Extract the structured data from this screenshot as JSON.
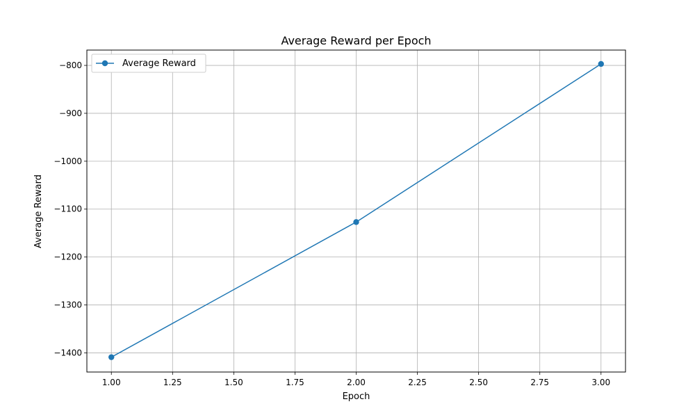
{
  "chart_data": {
    "type": "line",
    "title": "Average Reward per Epoch",
    "xlabel": "Epoch",
    "ylabel": "Average Reward",
    "x": [
      1,
      2,
      3
    ],
    "series": [
      {
        "name": "Average Reward",
        "values": [
          -1409,
          -1127,
          -797
        ],
        "color": "#1f77b4",
        "marker": "circle"
      }
    ],
    "xlim": [
      0.9,
      3.1
    ],
    "ylim": [
      -1440,
      -768
    ],
    "xticks": [
      1.0,
      1.25,
      1.5,
      1.75,
      2.0,
      2.25,
      2.5,
      2.75,
      3.0
    ],
    "xtick_labels": [
      "1.00",
      "1.25",
      "1.50",
      "1.75",
      "2.00",
      "2.25",
      "2.50",
      "2.75",
      "3.00"
    ],
    "yticks": [
      -1400,
      -1300,
      -1200,
      -1100,
      -1000,
      -900,
      -800
    ],
    "ytick_labels": [
      "−1400",
      "−1300",
      "−1200",
      "−1100",
      "−1000",
      "−900",
      "−800"
    ],
    "grid": true,
    "legend_position": "top-left"
  }
}
